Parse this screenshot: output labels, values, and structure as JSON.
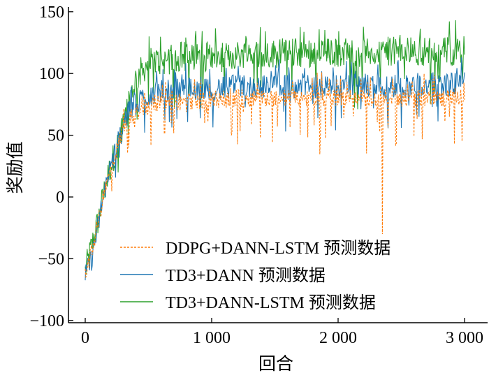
{
  "chart_data": {
    "type": "line",
    "title": "",
    "xlabel": "回合",
    "ylabel": "奖励值",
    "xlim": [
      -100,
      3050
    ],
    "ylim": [
      -100,
      150
    ],
    "xticks": [
      0,
      1000,
      2000,
      3000
    ],
    "xtick_labels": [
      "0",
      "1 000",
      "2 000",
      "3 000"
    ],
    "yticks": [
      -100,
      -50,
      0,
      50,
      100,
      150
    ],
    "ytick_labels": [
      "−100",
      "−50",
      "0",
      "50",
      "100",
      "150"
    ],
    "grid": false,
    "legend_placement": "bottom-center",
    "x_step": 50,
    "series": [
      {
        "name": "TD3+DANN-LSTM 预测数据",
        "color": "#2ca02c",
        "style": "solid",
        "noise": 12,
        "values": [
          -60,
          -40,
          -20,
          5,
          25,
          40,
          60,
          80,
          95,
          103,
          108,
          110,
          110,
          111,
          112,
          112,
          112,
          112,
          113,
          113,
          113,
          113,
          113,
          114,
          115,
          116,
          116,
          116,
          116,
          116,
          116,
          116,
          116,
          117,
          117,
          117,
          117,
          117,
          117,
          117,
          117,
          117,
          117,
          117,
          117,
          117,
          117,
          117,
          118,
          118,
          118,
          118,
          118,
          118,
          118,
          118,
          118,
          118,
          118,
          118,
          120
        ]
      },
      {
        "name": "TD3+DANN 预测数据",
        "color": "#1f77b4",
        "style": "solid",
        "noise": 10,
        "values": [
          -65,
          -50,
          -25,
          5,
          25,
          40,
          58,
          70,
          76,
          80,
          82,
          84,
          85,
          85,
          86,
          86,
          87,
          87,
          88,
          88,
          88,
          88,
          88,
          89,
          89,
          89,
          89,
          89,
          89,
          89,
          89,
          89,
          90,
          90,
          90,
          90,
          90,
          90,
          90,
          90,
          90,
          90,
          90,
          90,
          90,
          90,
          90,
          90,
          90,
          90,
          90,
          90,
          90,
          90,
          90,
          91,
          91,
          91,
          91,
          91,
          92
        ]
      },
      {
        "name": "DDPG+DANN-LSTM 预测数据",
        "color": "#ff7f0e",
        "style": "dashed",
        "noise": 7,
        "values": [
          -62,
          -45,
          -22,
          3,
          22,
          38,
          55,
          63,
          68,
          71,
          73,
          75,
          76,
          76,
          77,
          77,
          78,
          78,
          78,
          78,
          79,
          79,
          79,
          79,
          80,
          80,
          80,
          80,
          80,
          80,
          80,
          80,
          80,
          80,
          80,
          80,
          80,
          80,
          80,
          80,
          80,
          80,
          80,
          80,
          80,
          80,
          80,
          80,
          80,
          80,
          80,
          80,
          80,
          80,
          80,
          80,
          80,
          80,
          80,
          80,
          82
        ],
        "outliers": [
          [
            2350,
            -30
          ],
          [
            2980,
            45
          ]
        ]
      }
    ],
    "legend_order": [
      2,
      1,
      0
    ]
  }
}
